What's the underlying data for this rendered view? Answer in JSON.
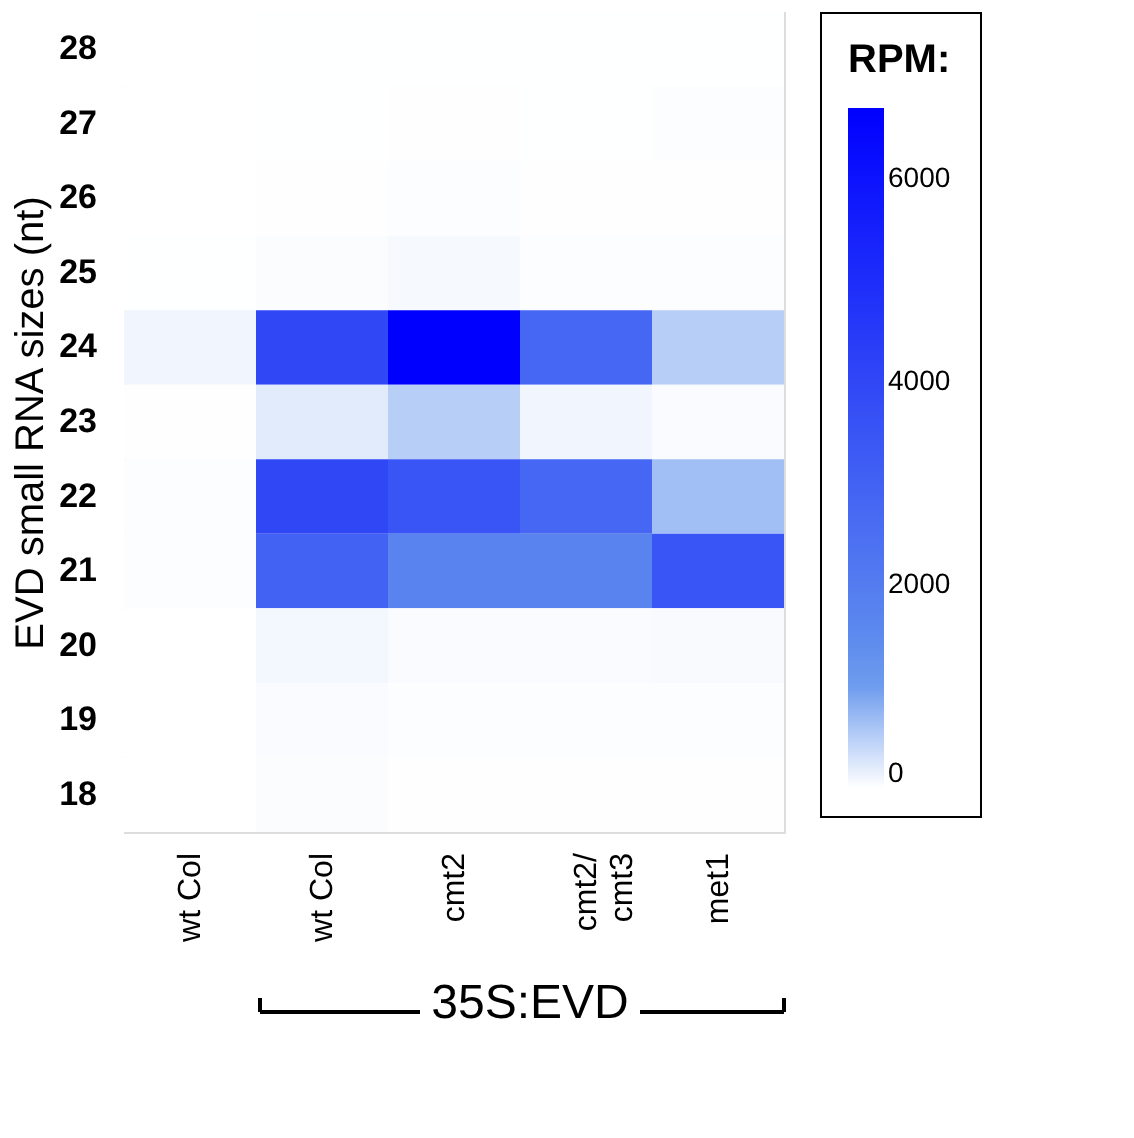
{
  "chart_data": {
    "type": "heatmap",
    "ylabel": "EVD small RNA sizes (nt)",
    "legend_title": "RPM:",
    "categories": [
      "wt Col",
      "wt Col",
      "cmt2",
      "cmt2/\ncmt3",
      "met1"
    ],
    "y_categories": [
      "28",
      "27",
      "26",
      "25",
      "24",
      "23",
      "22",
      "21",
      "20",
      "19",
      "18"
    ],
    "cells": [
      [
        0,
        5,
        5,
        5,
        5
      ],
      [
        0,
        5,
        10,
        5,
        20
      ],
      [
        0,
        10,
        20,
        10,
        10
      ],
      [
        5,
        30,
        60,
        20,
        20
      ],
      [
        100,
        4000,
        6700,
        2800,
        500
      ],
      [
        10,
        200,
        500,
        100,
        40
      ],
      [
        20,
        4000,
        3500,
        2800,
        650
      ],
      [
        20,
        3000,
        1700,
        1700,
        3500
      ],
      [
        0,
        80,
        40,
        40,
        50
      ],
      [
        0,
        40,
        20,
        20,
        20
      ],
      [
        0,
        30,
        10,
        10,
        10
      ]
    ],
    "clim": [
      0,
      6700
    ],
    "cticks": [
      0,
      2000,
      4000,
      6000
    ],
    "annotations": [
      "35S:EVD"
    ]
  }
}
